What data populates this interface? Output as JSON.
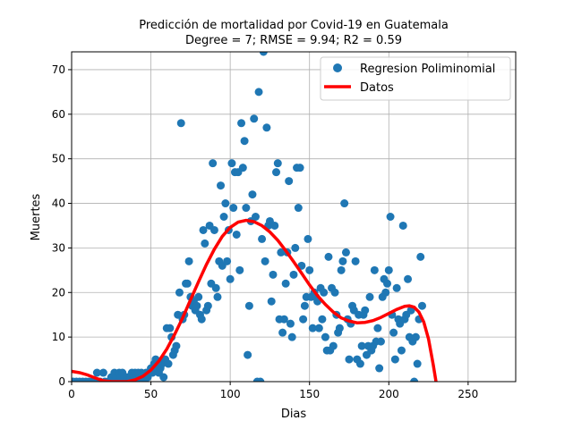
{
  "chart_data": {
    "type": "scatter",
    "title": "Predicción de mortalidad por Covid-19 en  Guatemala",
    "subtitle": "Degree = 7; RMSE = 9.94; R2 = 0.59",
    "xlabel": "Dias",
    "ylabel": "Muertes",
    "xlim": [
      0,
      280
    ],
    "ylim": [
      0,
      74
    ],
    "xticks": [
      0,
      50,
      100,
      150,
      200,
      250
    ],
    "yticks": [
      0,
      10,
      20,
      30,
      40,
      50,
      60,
      70
    ],
    "grid": true,
    "legend_position": "top-right",
    "colors": {
      "points": "#1f77b4",
      "line": "#ff0000",
      "grid": "#b0b0b0"
    },
    "series": [
      {
        "name": "Regresion Poliminomial",
        "kind": "scatter",
        "points": [
          [
            1,
            0
          ],
          [
            3,
            0
          ],
          [
            5,
            0
          ],
          [
            7,
            0
          ],
          [
            9,
            0
          ],
          [
            11,
            0
          ],
          [
            13,
            0
          ],
          [
            15,
            0
          ],
          [
            16,
            2
          ],
          [
            18,
            0
          ],
          [
            20,
            2
          ],
          [
            21,
            0
          ],
          [
            23,
            0
          ],
          [
            24,
            0
          ],
          [
            25,
            1
          ],
          [
            26,
            0
          ],
          [
            27,
            2
          ],
          [
            28,
            1
          ],
          [
            29,
            0
          ],
          [
            30,
            2
          ],
          [
            31,
            1
          ],
          [
            32,
            2
          ],
          [
            33,
            1
          ],
          [
            34,
            0
          ],
          [
            35,
            1
          ],
          [
            36,
            0
          ],
          [
            37,
            1
          ],
          [
            38,
            2
          ],
          [
            39,
            1
          ],
          [
            40,
            2
          ],
          [
            41,
            0
          ],
          [
            42,
            2
          ],
          [
            43,
            1
          ],
          [
            44,
            2
          ],
          [
            45,
            1
          ],
          [
            46,
            0
          ],
          [
            47,
            2
          ],
          [
            48,
            1
          ],
          [
            49,
            2
          ],
          [
            50,
            3
          ],
          [
            51,
            2
          ],
          [
            52,
            4
          ],
          [
            53,
            5
          ],
          [
            54,
            3
          ],
          [
            55,
            2
          ],
          [
            56,
            3
          ],
          [
            57,
            4
          ],
          [
            58,
            1
          ],
          [
            59,
            5
          ],
          [
            60,
            12
          ],
          [
            61,
            4
          ],
          [
            62,
            12
          ],
          [
            63,
            10
          ],
          [
            64,
            6
          ],
          [
            65,
            7
          ],
          [
            66,
            8
          ],
          [
            67,
            15
          ],
          [
            68,
            20
          ],
          [
            69,
            58
          ],
          [
            70,
            14
          ],
          [
            71,
            15
          ],
          [
            72,
            22
          ],
          [
            73,
            22
          ],
          [
            74,
            27
          ],
          [
            75,
            19
          ],
          [
            76,
            17
          ],
          [
            77,
            18
          ],
          [
            78,
            16
          ],
          [
            79,
            17
          ],
          [
            80,
            19
          ],
          [
            81,
            15
          ],
          [
            82,
            14
          ],
          [
            83,
            34
          ],
          [
            84,
            31
          ],
          [
            85,
            16
          ],
          [
            86,
            17
          ],
          [
            87,
            35
          ],
          [
            88,
            22
          ],
          [
            89,
            49
          ],
          [
            90,
            34
          ],
          [
            91,
            21
          ],
          [
            92,
            19
          ],
          [
            93,
            27
          ],
          [
            94,
            44
          ],
          [
            95,
            26
          ],
          [
            96,
            37
          ],
          [
            97,
            40
          ],
          [
            98,
            27
          ],
          [
            99,
            34
          ],
          [
            100,
            23
          ],
          [
            101,
            49
          ],
          [
            102,
            39
          ],
          [
            103,
            47
          ],
          [
            104,
            33
          ],
          [
            105,
            47
          ],
          [
            106,
            25
          ],
          [
            107,
            58
          ],
          [
            108,
            48
          ],
          [
            109,
            54
          ],
          [
            110,
            39
          ],
          [
            111,
            6
          ],
          [
            112,
            17
          ],
          [
            113,
            36
          ],
          [
            114,
            42
          ],
          [
            115,
            59
          ],
          [
            116,
            37
          ],
          [
            117,
            0
          ],
          [
            118,
            65
          ],
          [
            119,
            0
          ],
          [
            120,
            32
          ],
          [
            121,
            74
          ],
          [
            122,
            27
          ],
          [
            123,
            57
          ],
          [
            124,
            35
          ],
          [
            125,
            36
          ],
          [
            126,
            18
          ],
          [
            127,
            24
          ],
          [
            128,
            35
          ],
          [
            129,
            47
          ],
          [
            130,
            49
          ],
          [
            131,
            14
          ],
          [
            132,
            29
          ],
          [
            133,
            11
          ],
          [
            134,
            14
          ],
          [
            135,
            22
          ],
          [
            136,
            29
          ],
          [
            137,
            45
          ],
          [
            138,
            13
          ],
          [
            139,
            10
          ],
          [
            140,
            24
          ],
          [
            141,
            30
          ],
          [
            142,
            48
          ],
          [
            143,
            39
          ],
          [
            144,
            48
          ],
          [
            145,
            26
          ],
          [
            146,
            14
          ],
          [
            147,
            17
          ],
          [
            148,
            19
          ],
          [
            149,
            32
          ],
          [
            150,
            25
          ],
          [
            151,
            19
          ],
          [
            152,
            12
          ],
          [
            153,
            20
          ],
          [
            154,
            19
          ],
          [
            155,
            18
          ],
          [
            156,
            12
          ],
          [
            157,
            21
          ],
          [
            158,
            14
          ],
          [
            159,
            20
          ],
          [
            160,
            10
          ],
          [
            161,
            7
          ],
          [
            162,
            28
          ],
          [
            163,
            7
          ],
          [
            164,
            21
          ],
          [
            165,
            8
          ],
          [
            166,
            20
          ],
          [
            167,
            15
          ],
          [
            168,
            11
          ],
          [
            169,
            12
          ],
          [
            170,
            25
          ],
          [
            171,
            27
          ],
          [
            172,
            40
          ],
          [
            173,
            29
          ],
          [
            174,
            14
          ],
          [
            175,
            5
          ],
          [
            176,
            13
          ],
          [
            177,
            17
          ],
          [
            178,
            16
          ],
          [
            179,
            27
          ],
          [
            180,
            5
          ],
          [
            181,
            15
          ],
          [
            182,
            4
          ],
          [
            183,
            8
          ],
          [
            184,
            15
          ],
          [
            185,
            16
          ],
          [
            186,
            6
          ],
          [
            187,
            8
          ],
          [
            188,
            19
          ],
          [
            189,
            7
          ],
          [
            190,
            8
          ],
          [
            191,
            25
          ],
          [
            192,
            9
          ],
          [
            193,
            12
          ],
          [
            194,
            3
          ],
          [
            195,
            9
          ],
          [
            196,
            19
          ],
          [
            197,
            23
          ],
          [
            198,
            20
          ],
          [
            199,
            22
          ],
          [
            200,
            25
          ],
          [
            201,
            37
          ],
          [
            202,
            15
          ],
          [
            203,
            11
          ],
          [
            204,
            5
          ],
          [
            205,
            21
          ],
          [
            206,
            14
          ],
          [
            207,
            13
          ],
          [
            208,
            7
          ],
          [
            209,
            35
          ],
          [
            210,
            14
          ],
          [
            211,
            15
          ],
          [
            212,
            23
          ],
          [
            213,
            10
          ],
          [
            214,
            16
          ],
          [
            215,
            9
          ],
          [
            216,
            0
          ],
          [
            217,
            10
          ],
          [
            218,
            4
          ],
          [
            219,
            14
          ],
          [
            220,
            28
          ],
          [
            221,
            17
          ]
        ]
      },
      {
        "name": "Datos",
        "kind": "line",
        "points": [
          [
            0,
            2.3
          ],
          [
            5,
            2.0
          ],
          [
            10,
            1.5
          ],
          [
            15,
            0.8
          ],
          [
            20,
            0.2
          ],
          [
            25,
            0.0
          ],
          [
            30,
            0.0
          ],
          [
            35,
            0.0
          ],
          [
            40,
            0.4
          ],
          [
            45,
            1.2
          ],
          [
            50,
            2.6
          ],
          [
            55,
            4.6
          ],
          [
            60,
            7.3
          ],
          [
            65,
            10.6
          ],
          [
            70,
            14.3
          ],
          [
            75,
            18.4
          ],
          [
            80,
            22.4
          ],
          [
            85,
            26.3
          ],
          [
            90,
            29.7
          ],
          [
            95,
            32.6
          ],
          [
            100,
            34.6
          ],
          [
            105,
            35.8
          ],
          [
            110,
            36.2
          ],
          [
            115,
            35.9
          ],
          [
            120,
            35.0
          ],
          [
            125,
            33.6
          ],
          [
            130,
            31.7
          ],
          [
            135,
            29.4
          ],
          [
            140,
            26.9
          ],
          [
            145,
            24.3
          ],
          [
            150,
            21.7
          ],
          [
            155,
            19.3
          ],
          [
            160,
            17.3
          ],
          [
            165,
            15.6
          ],
          [
            170,
            14.3
          ],
          [
            175,
            13.6
          ],
          [
            180,
            13.2
          ],
          [
            185,
            13.3
          ],
          [
            190,
            13.7
          ],
          [
            195,
            14.4
          ],
          [
            200,
            15.3
          ],
          [
            205,
            16.2
          ],
          [
            210,
            16.9
          ],
          [
            213,
            17.0
          ],
          [
            216,
            16.7
          ],
          [
            219,
            15.6
          ],
          [
            222,
            13.4
          ],
          [
            225,
            9.6
          ],
          [
            228,
            3.8
          ],
          [
            230,
            -0.5
          ]
        ]
      }
    ]
  }
}
